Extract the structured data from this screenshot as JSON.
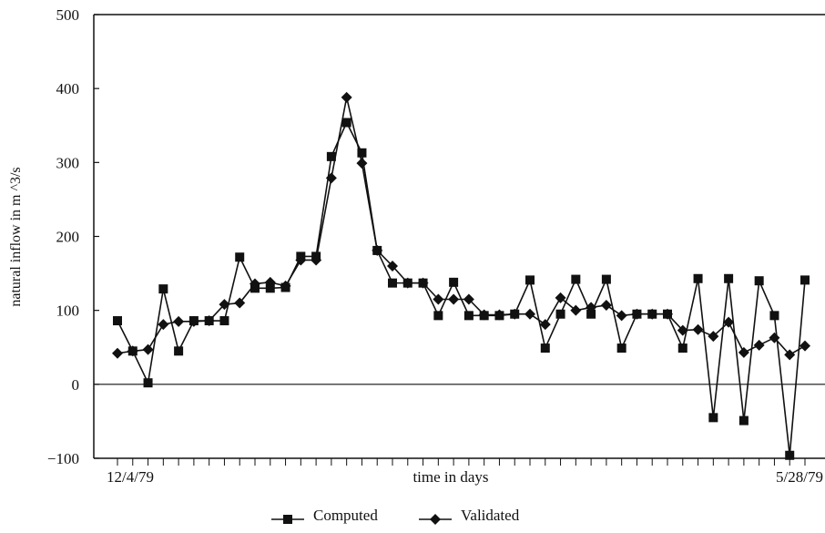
{
  "chart_data": {
    "type": "line",
    "y_label": "natural inflow in m ^3/s",
    "x_label": "time in days",
    "categories": [
      "12/4/79",
      null,
      null,
      null,
      null,
      null,
      null,
      null,
      null,
      null,
      null,
      null,
      null,
      null,
      null,
      null,
      null,
      null,
      null,
      null,
      null,
      null,
      null,
      null,
      null,
      null,
      null,
      null,
      null,
      null,
      null,
      null,
      null,
      null,
      null,
      null,
      null,
      null,
      null,
      null,
      null,
      null,
      null,
      null,
      null,
      "5/28/79"
    ],
    "series": [
      {
        "name": "Computed",
        "color": "#111111",
        "marker": "square",
        "values": [
          86,
          45,
          2,
          129,
          45,
          86,
          86,
          86,
          172,
          130,
          130,
          131,
          173,
          173,
          308,
          354,
          313,
          181,
          137,
          137,
          137,
          93,
          138,
          93,
          93,
          93,
          95,
          141,
          49,
          95,
          142,
          95,
          142,
          49,
          95,
          95,
          95,
          49,
          143,
          -45,
          143,
          -49,
          140,
          93,
          -96,
          141
        ]
      },
      {
        "name": "Validated",
        "color": "#111111",
        "marker": "diamond",
        "values": [
          42,
          45,
          47,
          81,
          85,
          85,
          86,
          108,
          110,
          136,
          138,
          133,
          168,
          168,
          279,
          388,
          299,
          181,
          160,
          137,
          137,
          115,
          115,
          115,
          94,
          94,
          95,
          95,
          81,
          117,
          100,
          104,
          107,
          93,
          95,
          95,
          95,
          73,
          74,
          65,
          84,
          43,
          53,
          63,
          40,
          52
        ]
      }
    ],
    "ylim": [
      -100,
      500
    ],
    "yticks": [
      {
        "value": -100,
        "label": "−100"
      },
      0,
      100,
      200,
      300,
      400,
      500
    ],
    "zero_line": true,
    "legend": "bottom"
  }
}
